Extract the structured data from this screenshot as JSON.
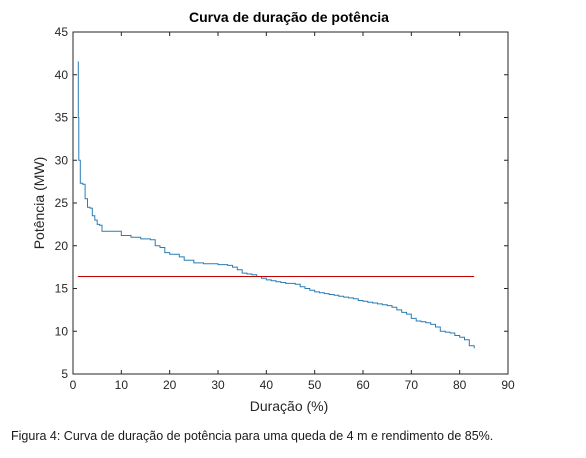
{
  "chart_data": {
    "type": "line",
    "title": "Curva de duração de potência",
    "xlabel": "Duração (%)",
    "ylabel": "Potência (MW)",
    "xlim": [
      0,
      90
    ],
    "ylim": [
      5,
      45
    ],
    "xticks": [
      0,
      10,
      20,
      30,
      40,
      50,
      60,
      70,
      80,
      90
    ],
    "yticks": [
      5,
      10,
      15,
      20,
      25,
      30,
      35,
      40,
      45
    ],
    "grid": false,
    "colors": {
      "duration_curve": "#2a7db4",
      "constant_line": "#c00000",
      "axes": "#262626"
    },
    "series": [
      {
        "x": [
          1.0,
          1.1,
          1.2,
          1.5,
          2,
          2.5,
          3,
          3.5,
          4,
          4.5,
          5,
          5.5,
          6,
          8,
          10,
          12,
          14,
          16,
          17,
          18,
          19,
          20,
          22,
          23,
          25,
          27,
          30,
          32,
          33,
          34,
          35,
          36,
          37,
          38,
          39,
          40,
          41,
          42,
          43,
          44,
          45,
          46,
          47,
          48,
          49,
          50,
          51,
          52,
          53,
          54,
          55,
          56,
          57,
          58,
          59,
          60,
          61,
          62,
          63,
          64,
          65,
          66,
          67,
          68,
          69,
          70,
          71,
          72,
          73,
          74,
          75,
          76,
          77,
          78,
          79,
          80,
          81,
          82,
          83
        ],
        "values": [
          41.5,
          35.0,
          30.0,
          27.3,
          27.2,
          25.5,
          24.5,
          24.4,
          23.5,
          23.0,
          22.5,
          22.4,
          21.7,
          21.7,
          21.2,
          21.0,
          20.8,
          20.7,
          20.0,
          19.8,
          19.2,
          19.0,
          18.7,
          18.3,
          18.0,
          17.9,
          17.8,
          17.7,
          17.5,
          17.2,
          16.8,
          16.7,
          16.6,
          16.4,
          16.2,
          16.0,
          15.9,
          15.8,
          15.7,
          15.6,
          15.6,
          15.5,
          15.2,
          15.0,
          14.8,
          14.6,
          14.5,
          14.4,
          14.3,
          14.2,
          14.1,
          14.0,
          13.9,
          13.8,
          13.6,
          13.5,
          13.4,
          13.3,
          13.2,
          13.1,
          13.0,
          12.8,
          12.5,
          12.2,
          12.0,
          11.5,
          11.2,
          11.1,
          11.0,
          10.8,
          10.5,
          10.0,
          9.9,
          9.8,
          9.5,
          9.3,
          9.0,
          8.3,
          8.0
        ]
      },
      {
        "x": [
          1,
          83
        ],
        "values": [
          16.4,
          16.4
        ]
      }
    ]
  },
  "caption": "Figura 4: Curva de duração de potência para uma queda de 4 m e rendimento de 85%."
}
